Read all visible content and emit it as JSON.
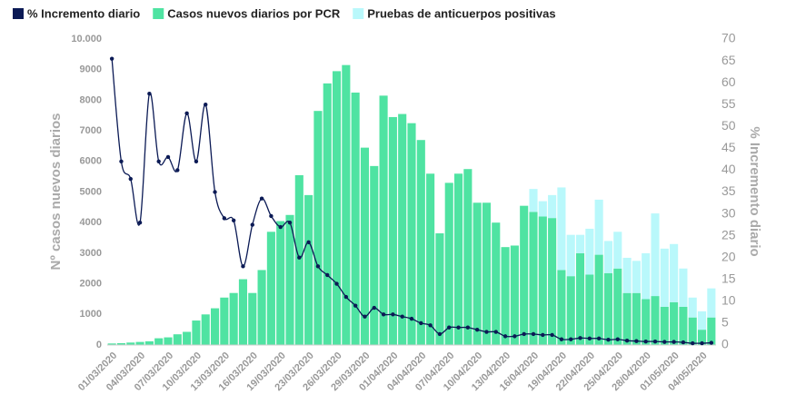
{
  "chart_data": {
    "type": "bar",
    "categories": [
      "01/03/2020",
      null,
      null,
      "04/03/2020",
      null,
      null,
      "07/03/2020",
      null,
      null,
      "10/03/2020",
      null,
      null,
      "13/03/2020",
      null,
      null,
      "16/03/2020",
      null,
      null,
      "19/03/2020",
      null,
      null,
      "23/03/2020",
      null,
      null,
      "26/03/2020",
      null,
      null,
      "29/03/2020",
      null,
      null,
      "01/04/2020",
      null,
      null,
      "04/04/2020",
      null,
      null,
      "07/04/2020",
      null,
      null,
      "10/04/2020",
      null,
      null,
      "13/04/2020",
      null,
      null,
      "16/04/2020",
      null,
      null,
      "19/04/2020",
      null,
      null,
      "22/04/2020",
      null,
      null,
      "25/04/2020",
      null,
      null,
      "28/04/2020",
      null,
      null,
      "01/05/2020",
      null,
      null,
      "04/05/2020",
      null
    ],
    "series": [
      {
        "name": "% Incremento diario",
        "type": "line",
        "axis": "y2",
        "color": "#0b1a55",
        "values": [
          65.5,
          42,
          38,
          28,
          57.5,
          42,
          43,
          40,
          53,
          42,
          55,
          35,
          29,
          28.5,
          18,
          27.5,
          33.5,
          29.5,
          27,
          28,
          20,
          23.5,
          18,
          16,
          14,
          11,
          9,
          6.5,
          8.5,
          7,
          7,
          6.5,
          6,
          5,
          4.5,
          2.5,
          4,
          4,
          4,
          3.5,
          3,
          3,
          2,
          2,
          2.5,
          2.5,
          2.3,
          2.3,
          1.3,
          1.3,
          1.6,
          1.5,
          1.5,
          1.2,
          1.3,
          1,
          0.9,
          0.8,
          0.8,
          0.7,
          0.7,
          0.6,
          0.4,
          0.4,
          0.5
        ]
      },
      {
        "name": "Casos nuevos diarios por PCR",
        "type": "bar",
        "color": "#4fe3a2",
        "values": [
          50,
          60,
          80,
          100,
          120,
          220,
          250,
          350,
          430,
          800,
          1000,
          1200,
          1550,
          1700,
          2150,
          1700,
          2450,
          3700,
          4050,
          4250,
          5550,
          4900,
          7650,
          8550,
          8950,
          9150,
          8250,
          6450,
          5850,
          8150,
          7450,
          7550,
          7250,
          6700,
          5600,
          3650,
          5300,
          5600,
          5750,
          4650,
          4650,
          4000,
          3200,
          3250,
          4550,
          4350,
          4200,
          4150,
          2450,
          2250,
          3000,
          2300,
          2950,
          2350,
          2500,
          1700,
          1700,
          1500,
          1600,
          1250,
          1400,
          1250,
          900,
          500,
          900
        ]
      },
      {
        "name": "Pruebas de anticuerpos positivas",
        "type": "bar",
        "color": "#b9f8fb",
        "values": [
          0,
          0,
          0,
          0,
          0,
          0,
          0,
          0,
          0,
          0,
          0,
          0,
          0,
          0,
          0,
          0,
          0,
          0,
          0,
          0,
          0,
          0,
          0,
          0,
          0,
          0,
          0,
          0,
          0,
          0,
          0,
          0,
          0,
          0,
          0,
          0,
          0,
          0,
          0,
          0,
          0,
          0,
          0,
          0,
          0,
          750,
          500,
          750,
          2700,
          1350,
          600,
          1500,
          1800,
          1050,
          1200,
          1150,
          1050,
          1500,
          2700,
          1900,
          1900,
          1250,
          650,
          600,
          950
        ]
      }
    ],
    "ylabel": "Nº casos nuevos diarios",
    "y2label": "% Incremento diario",
    "ylim": [
      0,
      10000
    ],
    "yticks": [
      0,
      1000,
      2000,
      3000,
      4000,
      5000,
      6000,
      7000,
      8000,
      9000,
      {
        "value": 10000,
        "label": "10.000"
      }
    ],
    "y2lim": [
      0,
      70
    ],
    "y2ticks": [
      0,
      5,
      10,
      15,
      20,
      25,
      30,
      35,
      40,
      45,
      50,
      55,
      60,
      65,
      70
    ],
    "legend": "top"
  }
}
